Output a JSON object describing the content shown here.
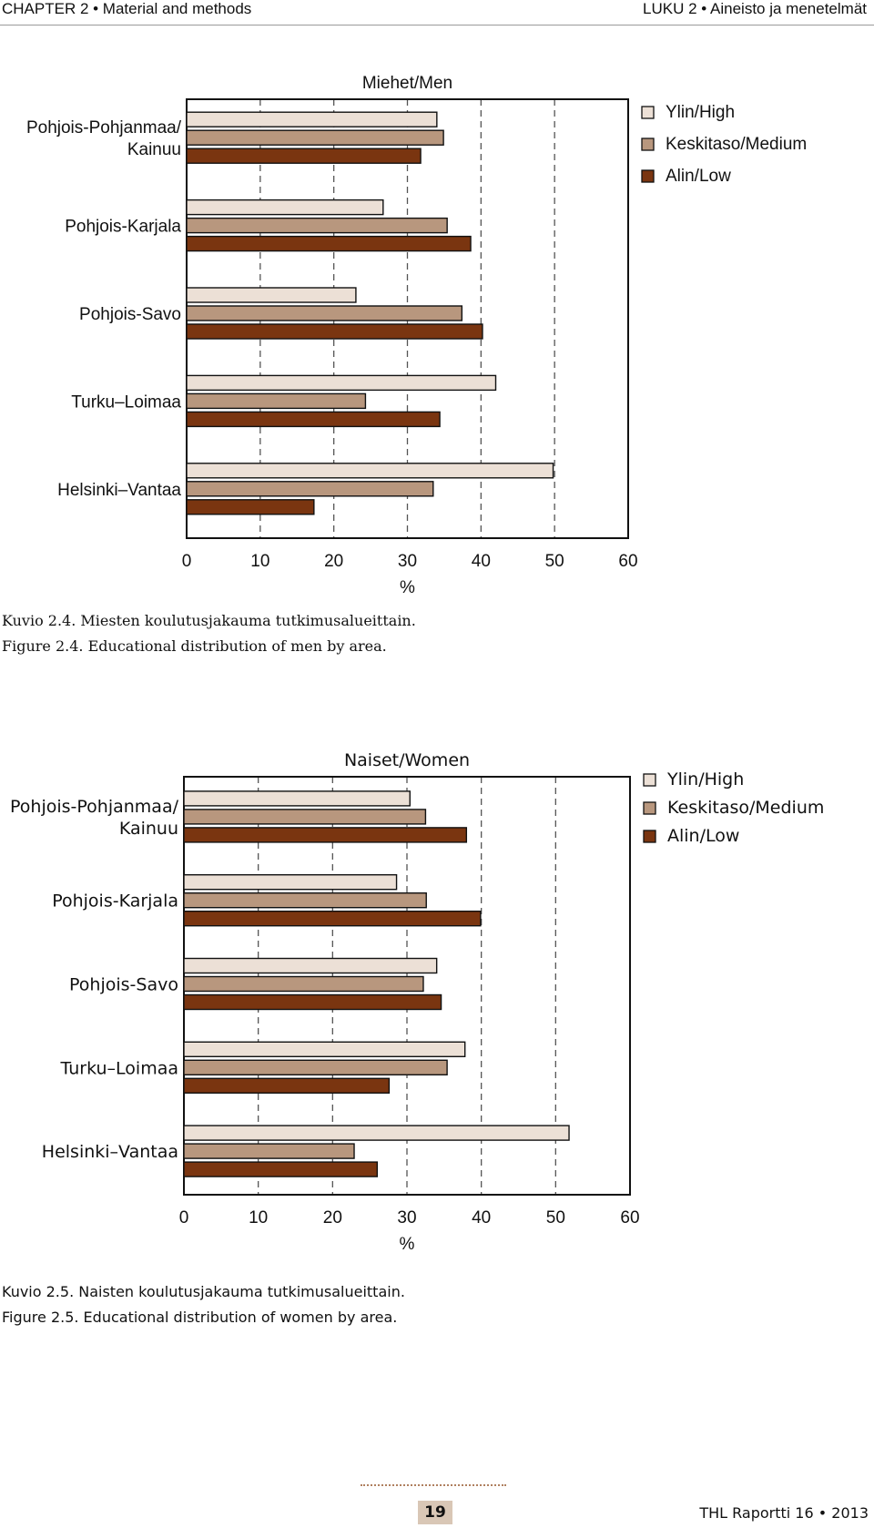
{
  "header": {
    "left": "CHAPTER 2 • Material and methods",
    "right": "LUKU 2 • Aineisto ja menetelmät"
  },
  "colors": {
    "high": "#ece0d6",
    "medium": "#b8977e",
    "low": "#7a3510"
  },
  "chart_data": [
    {
      "type": "bar",
      "orientation": "horizontal",
      "title": "Miehet/Men",
      "xlabel": "%",
      "xlim": [
        0,
        60
      ],
      "xticks": [
        0,
        10,
        20,
        30,
        40,
        50,
        60
      ],
      "grid": "dashed vertical",
      "legend": "top-right",
      "categories": [
        "Pohjois-Pohjanmaa/\nKainuu",
        "Pohjois-Karjala",
        "Pohjois-Savo",
        "Turku–Loimaa",
        "Helsinki–Vantaa"
      ],
      "series": [
        {
          "name": "Ylin/High",
          "values": [
            34,
            26.7,
            23,
            42,
            49.8
          ]
        },
        {
          "name": "Keskitaso/Medium",
          "values": [
            34.9,
            35.4,
            37.4,
            24.3,
            33.5
          ]
        },
        {
          "name": "Alin/Low",
          "values": [
            31.8,
            38.6,
            40.2,
            34.4,
            17.3
          ]
        }
      ]
    },
    {
      "type": "bar",
      "orientation": "horizontal",
      "title": "Naiset/Women",
      "xlabel": "%",
      "xlim": [
        0,
        60
      ],
      "xticks": [
        0,
        10,
        20,
        30,
        40,
        50,
        60
      ],
      "grid": "dashed vertical",
      "legend": "top-right",
      "categories": [
        "Pohjois-Pohjanmaa/\nKainuu",
        "Pohjois-Karjala",
        "Pohjois-Savo",
        "Turku–Loimaa",
        "Helsinki–Vantaa"
      ],
      "series": [
        {
          "name": "Ylin/High",
          "values": [
            30.4,
            28.6,
            34,
            37.8,
            51.8
          ]
        },
        {
          "name": "Keskitaso/Medium",
          "values": [
            32.5,
            32.6,
            32.2,
            35.4,
            22.9
          ]
        },
        {
          "name": "Alin/Low",
          "values": [
            38,
            39.9,
            34.6,
            27.6,
            26
          ]
        }
      ]
    }
  ],
  "captions": {
    "fig1_fi": "Kuvio 2.4. Miesten koulutusjakauma tutkimusalueittain.",
    "fig1_en": "Figure 2.4. Educational distribution of men by area.",
    "fig2_fi": "Kuvio 2.5. Naisten koulutusjakauma tutkimusalueittain.",
    "fig2_en": "Figure 2.5. Educational distribution of women by area."
  },
  "footer": {
    "page_number": "19",
    "report": "THL  Raportti 16 • 2013"
  }
}
